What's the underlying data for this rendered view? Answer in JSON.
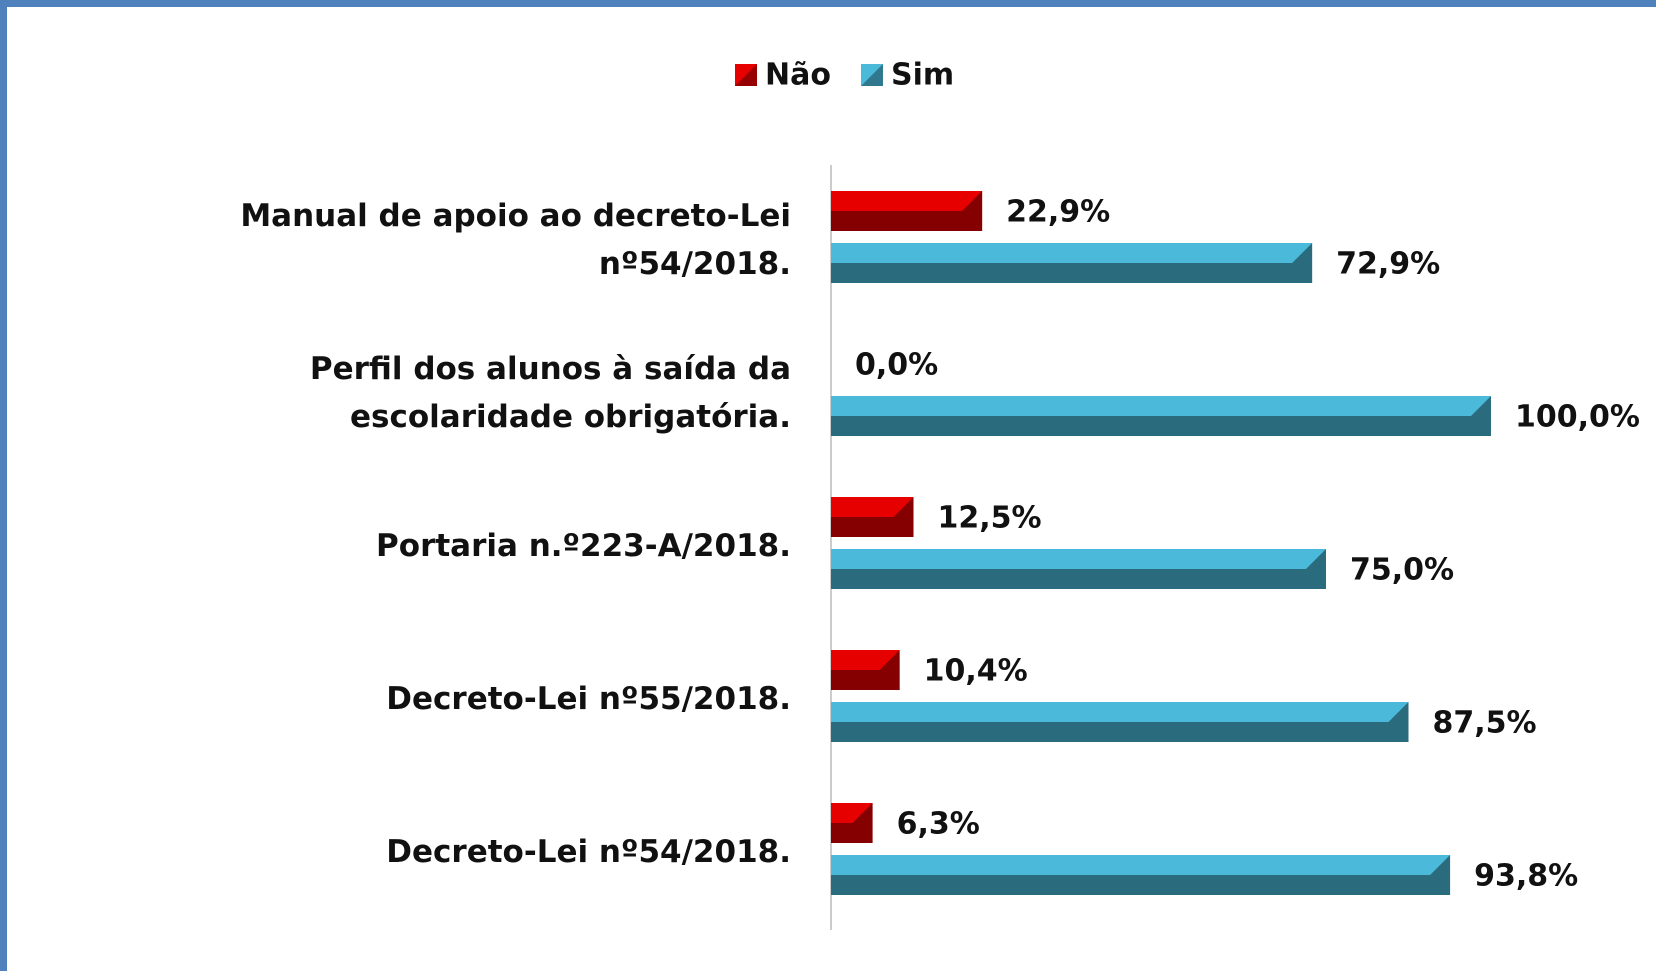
{
  "chart_data": {
    "type": "bar",
    "orientation": "horizontal",
    "categories": [
      "Manual de apoio ao decreto-Lei nº54/2018.",
      "Perfil dos alunos à saída da escolaridade obrigatória.",
      "Portaria n.º223-A/2018.",
      "Decreto-Lei nº55/2018.",
      "Decreto-Lei nº54/2018."
    ],
    "series": [
      {
        "name": "Não",
        "color": "#e60000",
        "values": [
          22.9,
          0,
          12.5,
          10.4,
          6.3
        ],
        "value_labels": [
          "22,9%",
          "0,0%",
          "12,5%",
          "10,4%",
          "6,3%"
        ]
      },
      {
        "name": "Sim",
        "color": "#4bb9da",
        "values": [
          72.9,
          100,
          75,
          87.5,
          93.8
        ],
        "value_labels": [
          "72,9%",
          "100,0%",
          "75,0%",
          "87,5%",
          "93,8%"
        ]
      }
    ],
    "xlim": [
      0,
      100
    ],
    "legend": "top"
  }
}
